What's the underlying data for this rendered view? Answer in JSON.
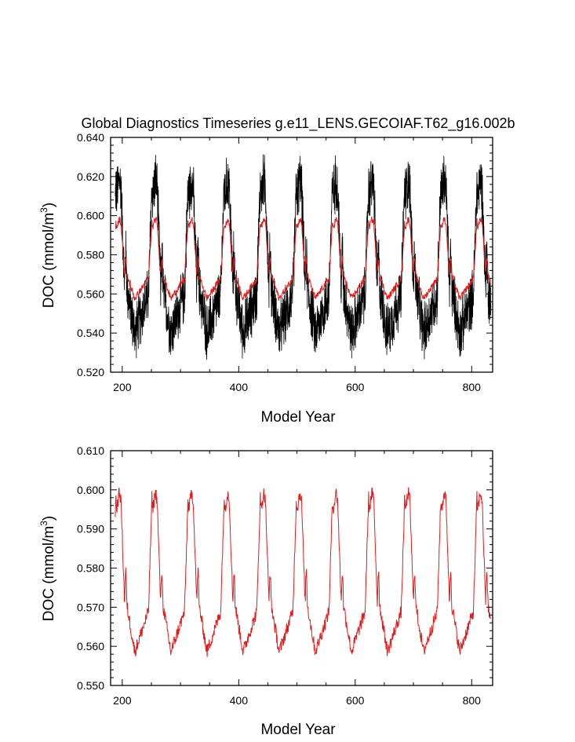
{
  "figure": {
    "title": "Global Diagnostics Timeseries g.e11_LENS.GECOIAF.T62_g16.002b"
  },
  "chart_data": [
    {
      "type": "line",
      "xlabel": "Model Year",
      "ylabel": "DOC (mmol/m",
      "ylabel_sup": "3",
      "ylabel_end": ")",
      "xlim": [
        180,
        836
      ],
      "ylim": [
        0.52,
        0.64
      ],
      "xticks": [
        200,
        400,
        600,
        800
      ],
      "xtick_labels": [
        "200",
        "400",
        "600",
        "800"
      ],
      "yticks": [
        0.52,
        0.54,
        0.56,
        0.58,
        0.6,
        0.62,
        0.64
      ],
      "ytick_labels": [
        "0.520",
        "0.540",
        "0.560",
        "0.580",
        "0.600",
        "0.620",
        "0.640"
      ],
      "series": [
        {
          "role": "monthly",
          "color": "#000000",
          "x_start": 188,
          "x_end": 833,
          "cycles": 10,
          "cycle_length": 62,
          "peak": 0.618,
          "trough": 0.535,
          "noise": 0.012
        },
        {
          "role": "annual mean",
          "color": "#e41a1c",
          "x_start": 188,
          "x_end": 833,
          "cycles": 10,
          "cycle_length": 62,
          "peak": 0.598,
          "trough": 0.555
        }
      ]
    },
    {
      "type": "line",
      "xlabel": "Model Year",
      "ylabel": "DOC (mmol/m",
      "ylabel_sup": "3",
      "ylabel_end": ")",
      "xlim": [
        180,
        836
      ],
      "ylim": [
        0.55,
        0.61
      ],
      "xticks": [
        200,
        400,
        600,
        800
      ],
      "xtick_labels": [
        "200",
        "400",
        "600",
        "800"
      ],
      "yticks": [
        0.55,
        0.56,
        0.57,
        0.58,
        0.59,
        0.6,
        0.61
      ],
      "ytick_labels": [
        "0.550",
        "0.560",
        "0.570",
        "0.580",
        "0.590",
        "0.600",
        "0.610"
      ],
      "series": [
        {
          "role": "annual mean",
          "color": "#e41a1c",
          "x_start": 188,
          "x_end": 833,
          "cycles": 10,
          "cycle_length": 62,
          "peak": 0.599,
          "trough": 0.556
        }
      ]
    }
  ]
}
